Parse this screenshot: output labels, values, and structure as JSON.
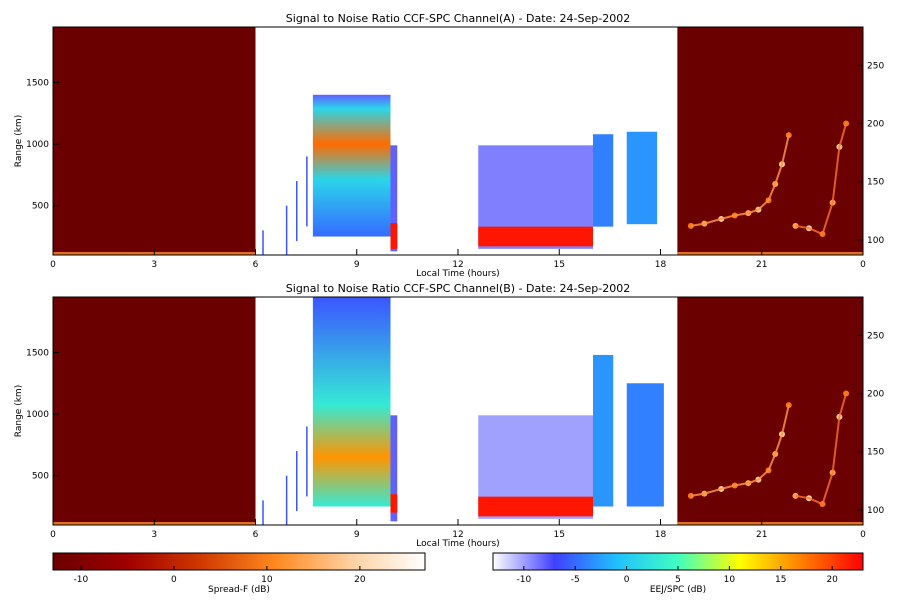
{
  "chart_data": [
    {
      "type": "heatmap",
      "title": "Signal to Noise Ratio CCF-SPC Channel(A) - Date: 24-Sep-2002",
      "xlabel": "Local Time (hours)",
      "ylabel": "Range (km)",
      "x_ticks": [
        "0",
        "3",
        "6",
        "9",
        "12",
        "15",
        "18",
        "21",
        "0"
      ],
      "y_ticks": [
        "500",
        "1000",
        "1500"
      ],
      "y2_ticks": [
        "100",
        "150",
        "200",
        "250"
      ],
      "xlim": [
        0,
        24
      ],
      "ylim": [
        100,
        1950
      ],
      "y2lim": [
        87,
        283
      ],
      "night_spreadF": {
        "windows": [
          [
            0,
            6
          ],
          [
            18.5,
            24
          ]
        ],
        "background": "#6b0000",
        "echo_traces": [
          {
            "time": 18.9,
            "height": 112
          },
          {
            "time": 19.3,
            "height": 114
          },
          {
            "time": 19.8,
            "height": 118
          },
          {
            "time": 20.2,
            "height": 121
          },
          {
            "time": 20.6,
            "height": 123
          },
          {
            "time": 20.9,
            "height": 126
          },
          {
            "time": 21.2,
            "height": 134
          },
          {
            "time": 21.4,
            "height": 148
          },
          {
            "time": 21.6,
            "height": 165
          },
          {
            "time": 21.8,
            "height": 190
          },
          {
            "time": 22.0,
            "height": 112
          },
          {
            "time": 22.4,
            "height": 110
          },
          {
            "time": 22.8,
            "height": 105
          },
          {
            "time": 23.1,
            "height": 132
          },
          {
            "time": 23.3,
            "height": 180
          },
          {
            "time": 23.5,
            "height": 200
          }
        ]
      },
      "day_blocks": [
        {
          "t0": 7.7,
          "t1": 10.0,
          "range": [
            250,
            1400
          ],
          "snr_db": -5,
          "peak_range": 1000,
          "peak_snr_db": 18
        },
        {
          "t0": 10.0,
          "t1": 10.2,
          "range": [
            130,
            990
          ],
          "snr_db": -8,
          "band": [
            150,
            360
          ],
          "band_snr_db": 22
        },
        {
          "t0": 12.6,
          "t1": 16.0,
          "range": [
            150,
            990
          ],
          "snr_db": -9,
          "band": [
            170,
            330
          ],
          "band_snr_db": 22
        },
        {
          "t0": 16.0,
          "t1": 16.6,
          "range": [
            330,
            1080
          ],
          "snr_db": -4
        },
        {
          "t0": 17.0,
          "t1": 17.9,
          "range": [
            350,
            1100
          ],
          "snr_db": -3
        }
      ]
    },
    {
      "type": "heatmap",
      "title": "Signal to Noise Ratio CCF-SPC Channel(B) - Date: 24-Sep-2002",
      "xlabel": "Local Time (hours)",
      "ylabel": "Range (km)",
      "x_ticks": [
        "0",
        "3",
        "6",
        "9",
        "12",
        "15",
        "18",
        "21",
        "0"
      ],
      "y_ticks": [
        "500",
        "1000",
        "1500"
      ],
      "y2_ticks": [
        "100",
        "150",
        "200",
        "250"
      ],
      "xlim": [
        0,
        24
      ],
      "ylim": [
        100,
        1950
      ],
      "y2lim": [
        87,
        283
      ],
      "night_spreadF": {
        "windows": [
          [
            0,
            6
          ],
          [
            18.5,
            24
          ]
        ],
        "background": "#6b0000",
        "echo_traces": [
          {
            "time": 18.9,
            "height": 112
          },
          {
            "time": 19.3,
            "height": 114
          },
          {
            "time": 19.8,
            "height": 118
          },
          {
            "time": 20.2,
            "height": 121
          },
          {
            "time": 20.6,
            "height": 123
          },
          {
            "time": 20.9,
            "height": 126
          },
          {
            "time": 21.2,
            "height": 134
          },
          {
            "time": 21.4,
            "height": 148
          },
          {
            "time": 21.6,
            "height": 165
          },
          {
            "time": 21.8,
            "height": 190
          },
          {
            "time": 22.0,
            "height": 112
          },
          {
            "time": 22.4,
            "height": 110
          },
          {
            "time": 22.8,
            "height": 105
          },
          {
            "time": 23.1,
            "height": 132
          },
          {
            "time": 23.3,
            "height": 180
          },
          {
            "time": 23.5,
            "height": 200
          }
        ]
      },
      "day_blocks": [
        {
          "t0": 7.7,
          "t1": 10.0,
          "range": [
            250,
            1950
          ],
          "snr_db": -3,
          "peak_range": 650,
          "peak_snr_db": 16
        },
        {
          "t0": 10.0,
          "t1": 10.2,
          "range": [
            130,
            990
          ],
          "snr_db": -8,
          "band": [
            200,
            350
          ],
          "band_snr_db": 22
        },
        {
          "t0": 12.6,
          "t1": 16.0,
          "range": [
            150,
            990
          ],
          "snr_db": -10,
          "band": [
            170,
            330
          ],
          "band_snr_db": 22
        },
        {
          "t0": 16.0,
          "t1": 16.6,
          "range": [
            250,
            1480
          ],
          "snr_db": -3
        },
        {
          "t0": 17.0,
          "t1": 18.1,
          "range": [
            250,
            1250
          ],
          "snr_db": -4
        }
      ]
    }
  ],
  "colorbars": [
    {
      "label": "Spread-F (dB)",
      "ticks": [
        "-10",
        "0",
        "10",
        "20"
      ],
      "range": [
        -13,
        27
      ],
      "scale": [
        "#6b0000",
        "#a00000",
        "#d03a00",
        "#ff8a20",
        "#ffd0a0",
        "#ffffff"
      ]
    },
    {
      "label": "EEJ/SPC (dB)",
      "ticks": [
        "-10",
        "-5",
        "0",
        "5",
        "10",
        "15",
        "20"
      ],
      "range": [
        -13,
        23
      ],
      "scale": [
        "#ffffff",
        "#4040ff",
        "#20c0ff",
        "#40ffc0",
        "#ffff00",
        "#ff8000",
        "#ff0000"
      ]
    }
  ]
}
